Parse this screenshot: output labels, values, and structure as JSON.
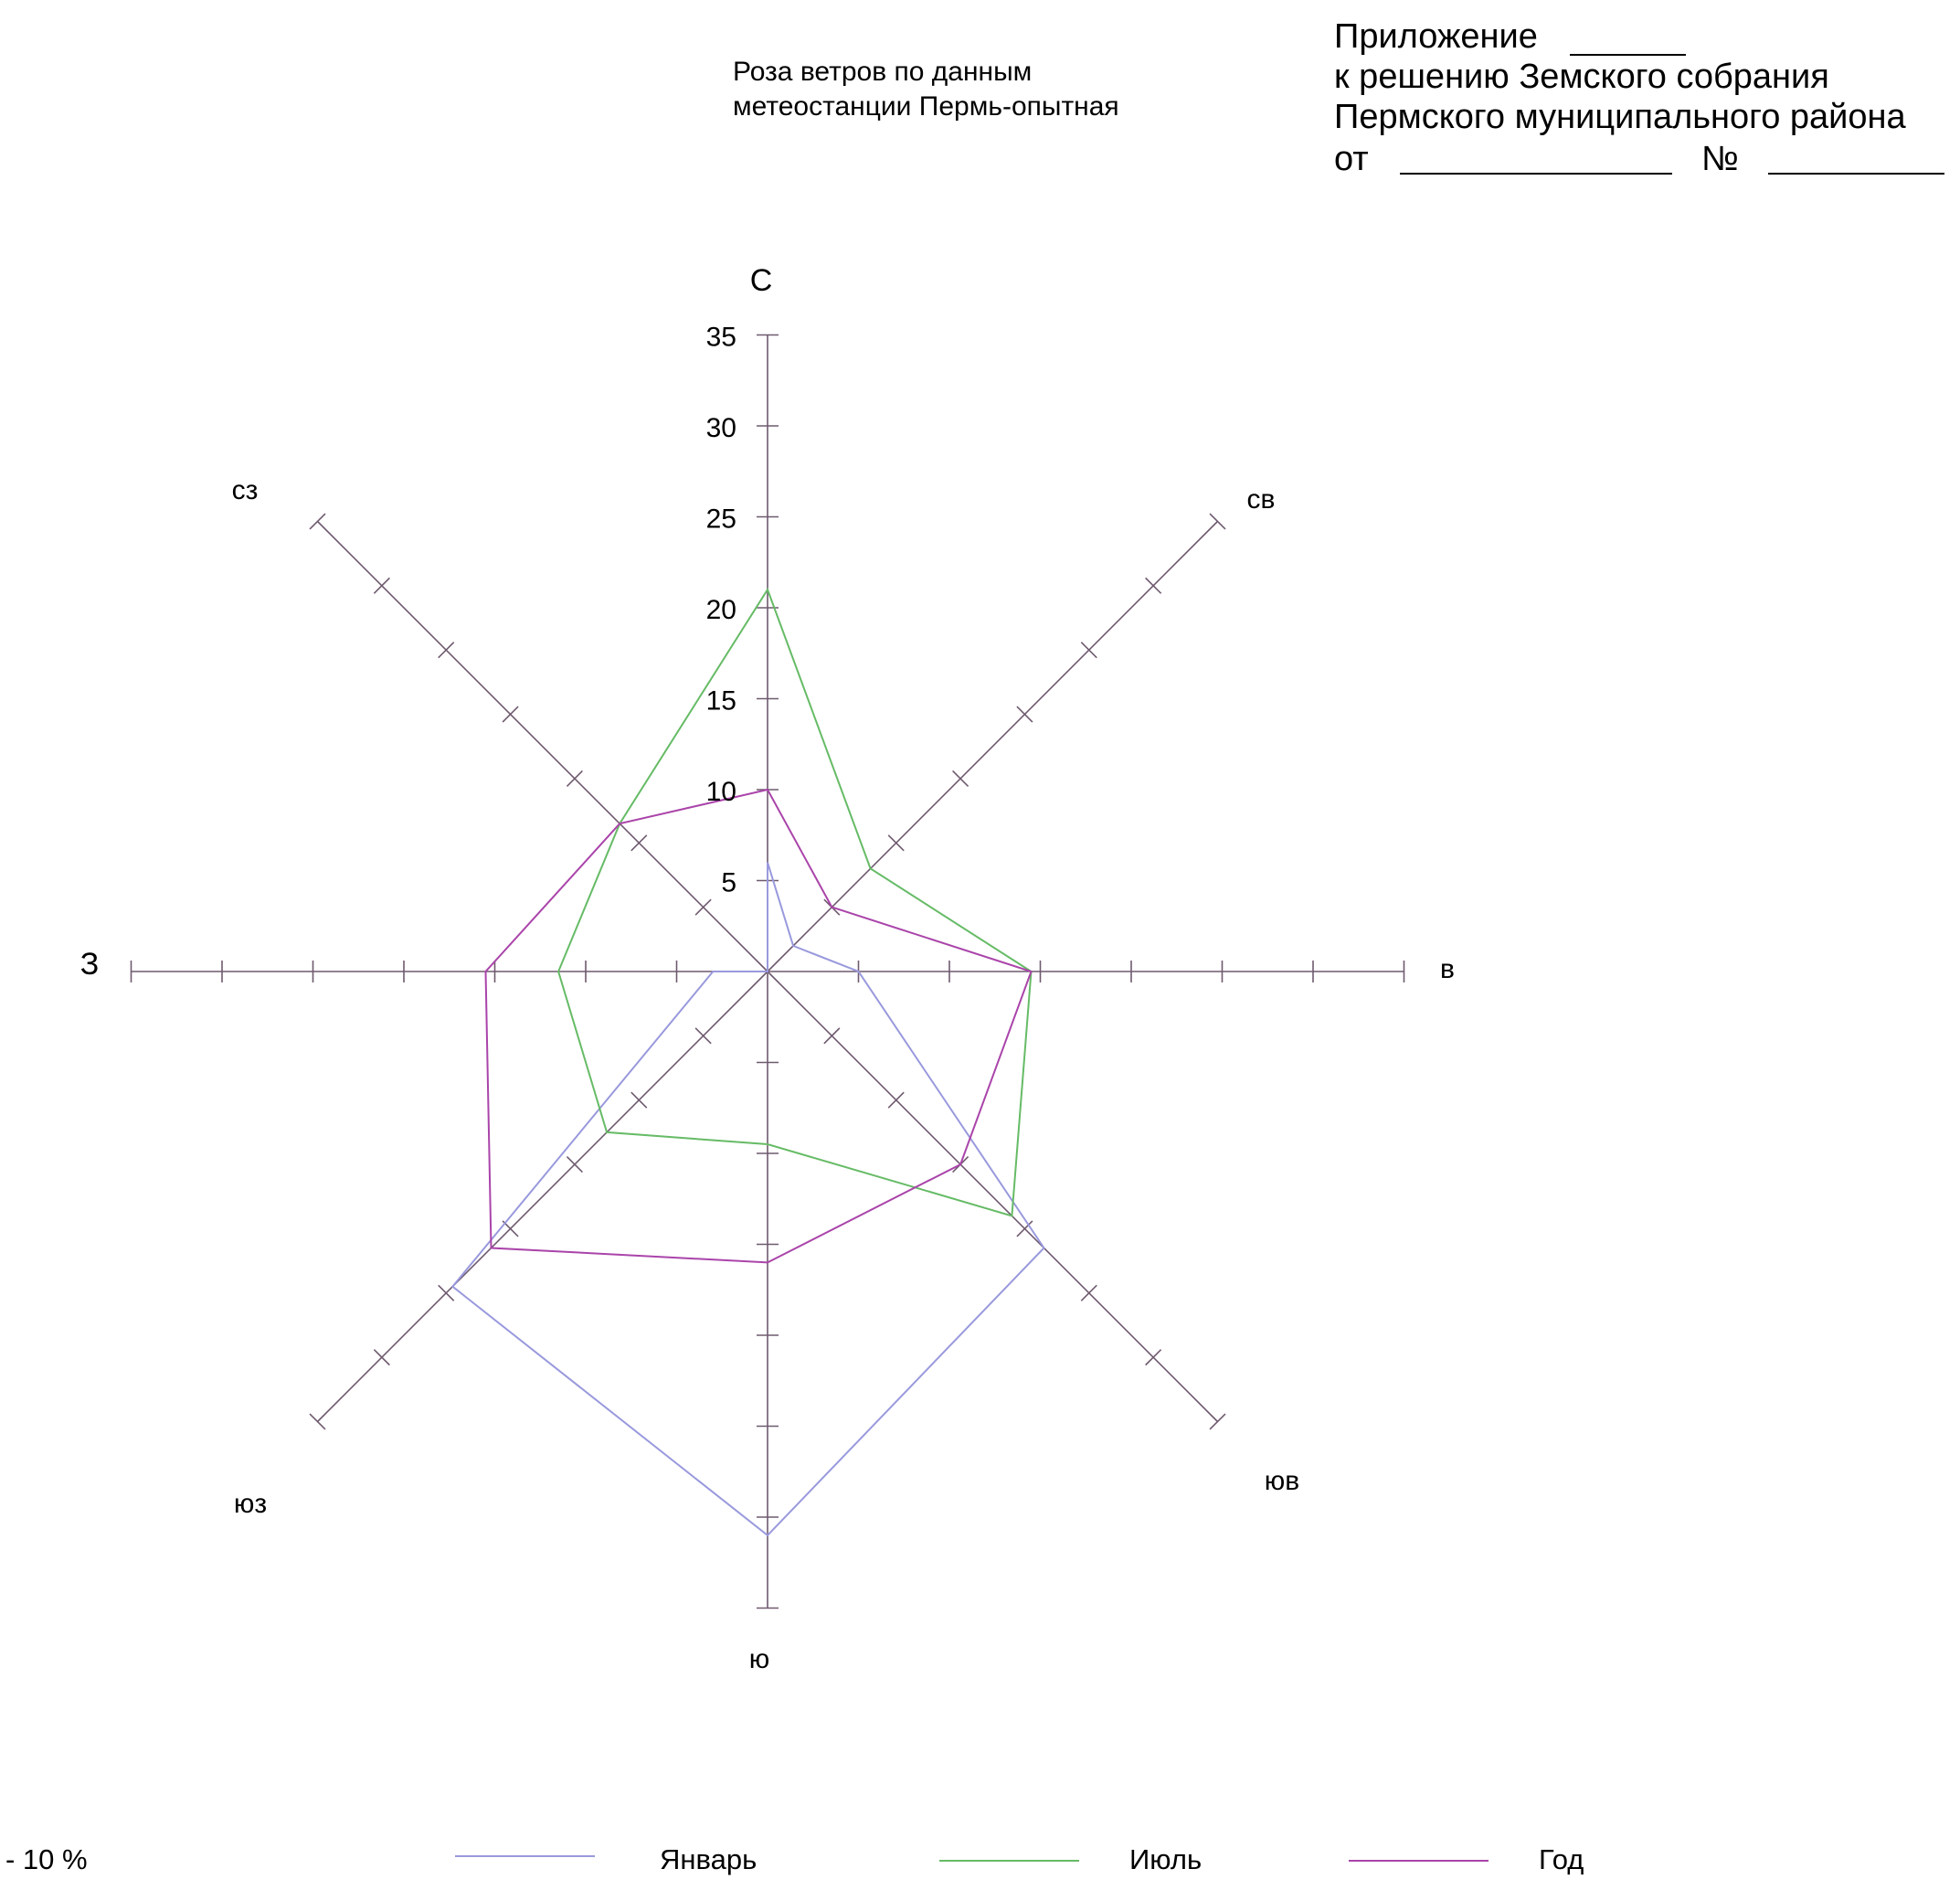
{
  "header": {
    "line1": "Приложение",
    "line2": "к решению Земского собрания",
    "line3": "Пермского муниципального района",
    "line4_from": "от",
    "line4_no": "№"
  },
  "chart_data": {
    "type": "radar",
    "title": [
      "Роза ветров по данным",
      "метеостанции Пермь-опытная"
    ],
    "directions": [
      "С",
      "св",
      "в",
      "юв",
      "ю",
      "юз",
      "З",
      "сз"
    ],
    "r_ticks": [
      "5",
      "10",
      "15",
      "20",
      "25",
      "30",
      "35"
    ],
    "rmax": 35,
    "series": [
      {
        "name": "Январь",
        "color": "#9999dd",
        "values": [
          6,
          2,
          5,
          21.5,
          31,
          24.5,
          3,
          0
        ]
      },
      {
        "name": "Июль",
        "color": "#66bb66",
        "values": [
          21,
          8,
          14.5,
          19,
          9.5,
          12.5,
          11.5,
          11.5
        ]
      },
      {
        "name": "Год",
        "color": "#aa44aa",
        "values": [
          10,
          5,
          14.5,
          15,
          16,
          21.5,
          15.5,
          11.5
        ]
      }
    ],
    "legend_scale_note": "- 10 %"
  }
}
